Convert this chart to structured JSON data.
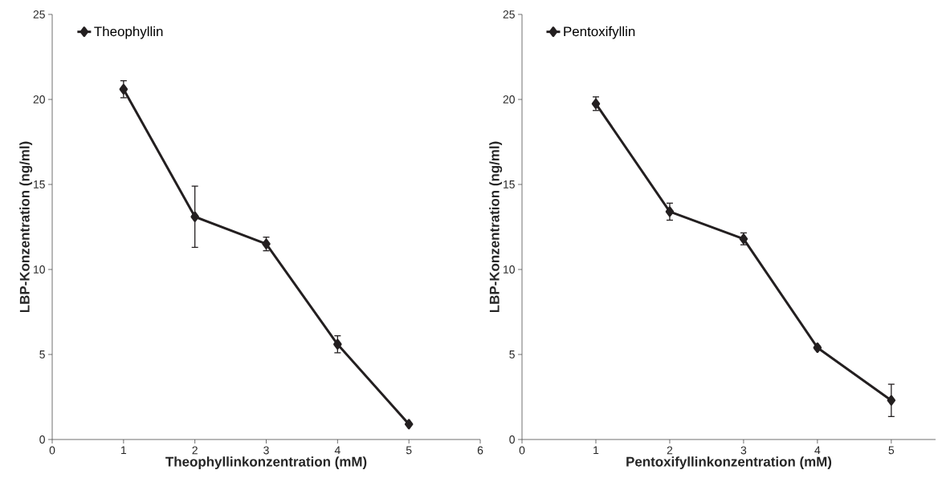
{
  "chart_data": [
    {
      "type": "line",
      "x": [
        1,
        2,
        3,
        4,
        5
      ],
      "xlim": [
        0,
        6
      ],
      "xticks": [
        0,
        1,
        2,
        3,
        4,
        5,
        6
      ],
      "ylim": [
        0,
        25
      ],
      "yticks": [
        0,
        5,
        10,
        15,
        20,
        25
      ],
      "xlabel": "Theophyllinkonzentration (mM)",
      "ylabel": "LBP-Konzentration (ng/ml)",
      "legend": "top left",
      "marker": "diamond",
      "grid": false,
      "series": [
        {
          "name": "Theophyllin",
          "color": "#231f20",
          "values": [
            20.6,
            13.1,
            11.5,
            5.6,
            0.9
          ],
          "errors": [
            0.5,
            1.8,
            0.4,
            0.5,
            null
          ]
        }
      ]
    },
    {
      "type": "line",
      "x": [
        1,
        2,
        3,
        4,
        5
      ],
      "xlim": [
        0,
        5.6
      ],
      "xticks": [
        0,
        1,
        2,
        3,
        4,
        5
      ],
      "ylim": [
        0,
        25
      ],
      "yticks": [
        0,
        5,
        10,
        15,
        20,
        25
      ],
      "xlabel": "Pentoxifyllinkonzentration (mM)",
      "ylabel": "LBP-Konzentration (ng/ml)",
      "legend": "top left",
      "marker": "diamond",
      "grid": false,
      "series": [
        {
          "name": "Pentoxifyllin",
          "color": "#231f20",
          "values": [
            19.75,
            13.4,
            11.8,
            5.4,
            2.3
          ],
          "errors": [
            0.4,
            0.5,
            0.35,
            0.1,
            0.95
          ]
        }
      ]
    }
  ]
}
